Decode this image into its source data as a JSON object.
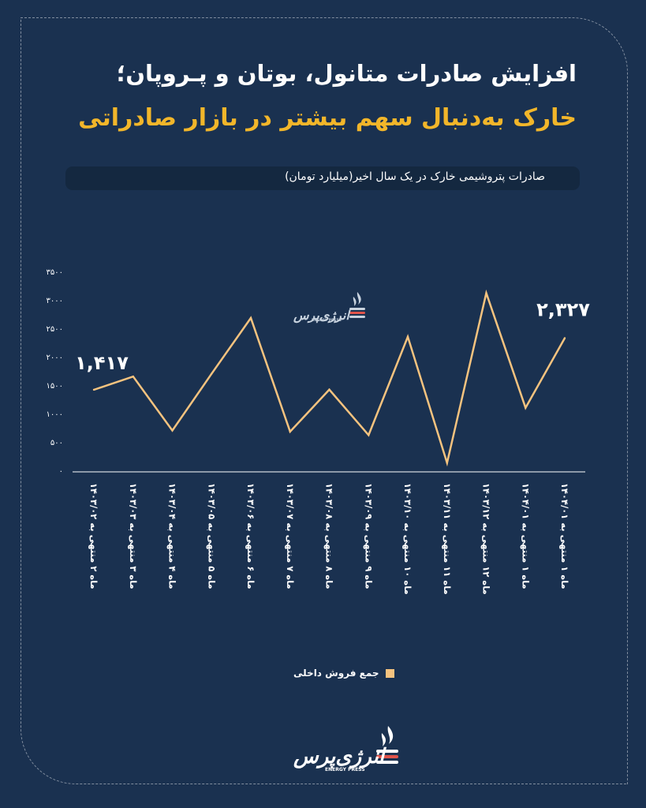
{
  "header": {
    "title_line1": "افزایش صادرات متانول، بوتان و پـروپان؛",
    "title_line2": "خارک به‌دنبال سهم بیشتر در بازار صادراتی",
    "subtitle": "صادرات پتروشیمی خارک در یک سال اخیر(میلیارد تومان)"
  },
  "colors": {
    "background": "#1a3150",
    "accent": "#f2b62a",
    "line": "#f5c37f"
  },
  "chart_data": {
    "type": "line",
    "title": "صادرات پتروشیمی خارک در یک سال اخیر(میلیارد تومان)",
    "categories": [
      "ماه ۲ منتهی به ۱۴۰۳/۰۲",
      "ماه ۳ منتهی به ۱۴۰۳/۰۳",
      "ماه ۴ منتهی به ۱۴۰۳/۰۴",
      "ماه ۵ منتهی به ۱۴۰۳/۰۵",
      "ماه ۶ منتهی به ۱۴۰۳/۰۶",
      "ماه ۷ منتهی به ۱۴۰۳/۰۷",
      "ماه ۸ منتهی به ۱۴۰۳/۰۸",
      "ماه ۹ منتهی به ۱۴۰۳/۰۹",
      "ماه ۱۰ منتهی به ۱۴۰۳/۱۰",
      "ماه ۱۱ منتهی به ۱۴۰۳/۱۱",
      "ماه ۱۲ منتهی به ۱۴۰۳/۱۲",
      "ماه ۱ منتهی به ۱۴۰۴/۰۱",
      "ماه ۱ منتهی به ۱۴۰۴/۰۱"
    ],
    "series": [
      {
        "name": "جمع فروش داخلی",
        "values": [
          1417,
          1650,
          700,
          1700,
          2680,
          680,
          1420,
          620,
          2350,
          130,
          3120,
          1100,
          2327
        ]
      }
    ],
    "yticks": [
      "۳۵۰۰",
      "۳۰۰۰",
      "۲۵۰۰",
      "۲۰۰۰",
      "۱۵۰۰",
      "۱۰۰۰",
      "۵۰۰",
      "۰"
    ],
    "ytick_values": [
      3500,
      3000,
      2500,
      2000,
      1500,
      1000,
      500,
      0
    ],
    "ylim": [
      0,
      3500
    ],
    "callouts": [
      {
        "index": 0,
        "text": "۱,۴۱۷"
      },
      {
        "index": 12,
        "text": "۲,۳۲۷"
      }
    ],
    "grid": false,
    "legend_position": "bottom"
  },
  "legend": {
    "label": "جمع فروش داخلی"
  },
  "branding": {
    "logo_text": "انرژی‌پرس",
    "logo_sub": "ENERGY PRESS",
    "logo_icon": "flame-logo-icon"
  }
}
